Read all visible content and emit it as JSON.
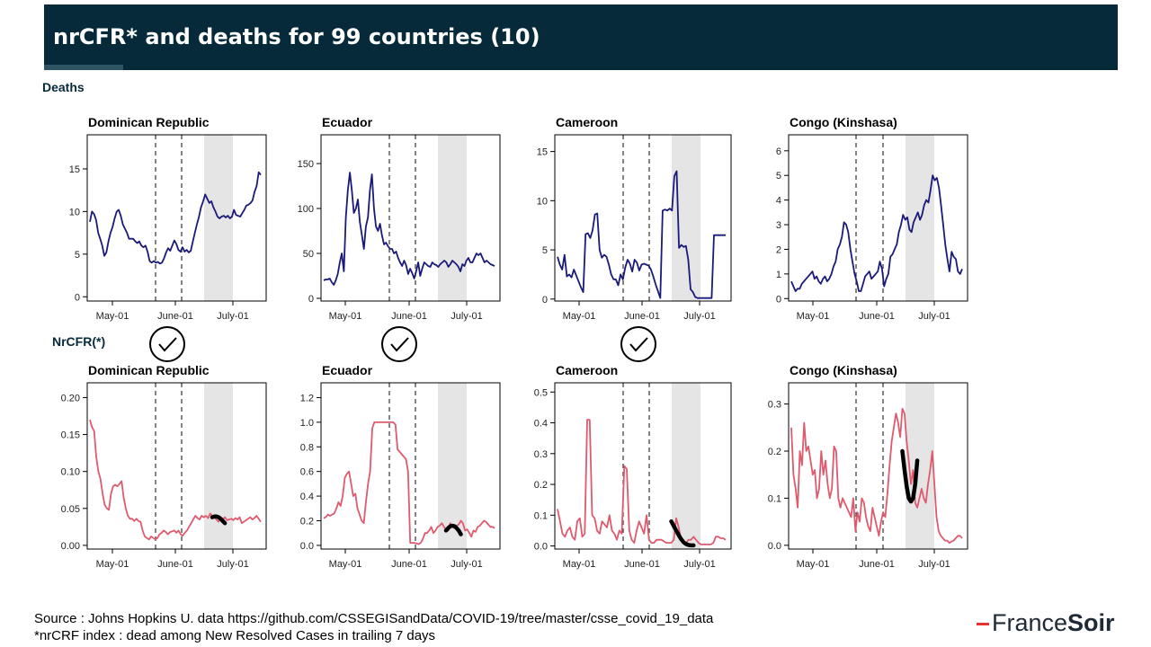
{
  "header": {
    "title": "nrCFR* and deaths for 99 countries (10)"
  },
  "sections": {
    "deaths_label": "Deaths",
    "nrcfr_label": "NrCFR(*)"
  },
  "footer": {
    "source": "Source : Johns Hopkins U. data https://github.com/CSSEGISandData/COVID-19/tree/master/csse_covid_19_data",
    "note": "*nrCRF index : dead among New Resolved  Cases in trailing 7 days"
  },
  "logo": {
    "part1": "France",
    "part2": "Soir"
  },
  "colors": {
    "deaths_line": "#1a1a7a",
    "nrcfr_line": "#e05a6e",
    "fit_line": "#000000",
    "shade": "#e5e5e5",
    "title_bg": "#062a3a"
  },
  "chart_data": [
    {
      "type": "line",
      "title": "Dominican Republic",
      "metric": "deaths",
      "x_ticks": [
        "May-01",
        "June-01",
        "July-01"
      ],
      "y_ticks": [
        0,
        5,
        10,
        15
      ],
      "ylim": [
        -0.5,
        19
      ],
      "checkmark": true,
      "values": [
        8.8,
        10,
        9.7,
        9,
        7.5,
        6.8,
        6,
        4.8,
        5.2,
        6.5,
        7.5,
        8.2,
        9.2,
        10,
        10.2,
        9.5,
        8.5,
        8,
        7.5,
        6.8,
        6.8,
        6.8,
        6.5,
        6.3,
        6.5,
        6,
        5.8,
        6,
        5.3,
        4.2,
        4,
        4.2,
        4,
        4.1,
        3.9,
        4,
        4.5,
        5.2,
        5.7,
        5.4,
        6,
        6.6,
        6.2,
        5.5,
        5.3,
        5.8,
        5.3,
        5.5,
        5.2,
        5.4,
        6.5,
        7.5,
        8.5,
        9.4,
        10.5,
        11.2,
        12,
        11.5,
        11,
        11.2,
        10.5,
        10,
        9.4,
        9.2,
        9.4,
        9.5,
        9.3,
        9.5,
        9.2,
        9.4,
        10.2,
        9.6,
        9.5,
        9.4,
        9.8,
        10.2,
        10.7,
        10.8,
        11,
        11.3,
        12.3,
        13,
        14.6,
        14.3
      ]
    },
    {
      "type": "line",
      "title": "Ecuador",
      "metric": "deaths",
      "x_ticks": [
        "May-01",
        "June-01",
        "July-01"
      ],
      "y_ticks": [
        0,
        50,
        100,
        150
      ],
      "ylim": [
        -3,
        182
      ],
      "checkmark": true,
      "values": [
        20,
        21,
        21,
        22,
        18,
        15,
        20,
        27,
        40,
        50,
        30,
        90,
        120,
        140,
        120,
        95,
        100,
        110,
        85,
        70,
        55,
        80,
        90,
        120,
        138,
        100,
        80,
        75,
        83,
        70,
        60,
        62,
        58,
        55,
        55,
        50,
        52,
        45,
        40,
        36,
        42,
        37,
        27,
        33,
        28,
        22,
        30,
        40,
        25,
        33,
        40,
        38,
        36,
        35,
        40,
        38,
        37,
        35,
        38,
        40,
        42,
        40,
        35,
        38,
        42,
        40,
        38,
        35,
        30,
        38,
        36,
        42,
        45,
        40,
        40,
        45,
        50,
        48,
        50,
        45,
        40,
        42,
        40,
        38,
        37,
        36
      ]
    },
    {
      "type": "line",
      "title": "Cameroon",
      "metric": "deaths",
      "x_ticks": [
        "May-01",
        "June-01",
        "July-01"
      ],
      "y_ticks": [
        0,
        5,
        10,
        15
      ],
      "ylim": [
        -0.2,
        16.7
      ],
      "checkmark": true,
      "values": [
        4.3,
        3.5,
        3,
        4.5,
        2.3,
        2.5,
        2.2,
        3,
        2.4,
        1.8,
        1.2,
        0.7,
        6.6,
        6.7,
        6.2,
        7,
        8.6,
        8.7,
        5,
        4.2,
        4.5,
        4.3,
        3.5,
        2.5,
        2,
        2,
        1.4,
        2.5,
        2,
        3.2,
        4,
        3.6,
        2.8,
        4,
        3.7,
        2.9,
        3.5,
        3.6,
        3.5,
        3.4,
        3,
        2.3,
        1.5,
        0.8,
        0.1,
        9,
        9.1,
        9,
        9.2,
        9,
        12.5,
        13,
        5.2,
        5.5,
        5.3,
        5.4,
        4,
        1,
        0.7,
        0.2,
        0.1,
        0.1,
        0.1,
        0.1,
        0.1,
        0.1,
        0.1,
        6.5,
        6.5,
        6.5,
        6.5,
        6.5,
        6.5
      ]
    },
    {
      "type": "line",
      "title": "Congo (Kinshasa)",
      "metric": "deaths",
      "x_ticks": [
        "May-01",
        "June-01",
        "July-01"
      ],
      "y_ticks": [
        0,
        1,
        2,
        3,
        4,
        5,
        6
      ],
      "ylim": [
        -0.1,
        6.65
      ],
      "checkmark": false,
      "values": [
        0.7,
        0.5,
        0.3,
        0.4,
        0.4,
        0.6,
        0.7,
        0.8,
        0.9,
        1,
        1.1,
        0.8,
        0.9,
        0.7,
        0.6,
        0.8,
        0.9,
        0.7,
        0.8,
        1,
        1.3,
        1.5,
        2,
        2.2,
        2.5,
        3.1,
        3,
        2.7,
        2,
        1.5,
        1,
        0.7,
        0.3,
        0.3,
        0.6,
        0.9,
        1,
        1.1,
        0.8,
        0.9,
        1,
        1.1,
        1.5,
        1.2,
        0.5,
        0.8,
        1,
        1.7,
        1.8,
        2,
        2.2,
        2.7,
        3,
        3.4,
        3.2,
        3.3,
        2.8,
        2.7,
        3.1,
        3.3,
        3.5,
        3.2,
        3.4,
        3.8,
        4,
        3.9,
        4.4,
        5,
        4.8,
        4.9,
        4.5,
        3.8,
        3,
        2.2,
        1.6,
        1.1,
        1.9,
        1.7,
        1.6,
        1.1,
        1,
        1.2
      ]
    },
    {
      "type": "line",
      "title": "Dominican Republic",
      "metric": "nrCFR",
      "x_ticks": [
        "May-01",
        "June-01",
        "July-01"
      ],
      "y_ticks": [
        0.0,
        0.05,
        0.1,
        0.15,
        0.2
      ],
      "ylim": [
        -0.005,
        0.22
      ],
      "values": [
        0.17,
        0.16,
        0.155,
        0.12,
        0.1,
        0.09,
        0.07,
        0.055,
        0.05,
        0.048,
        0.07,
        0.08,
        0.082,
        0.08,
        0.083,
        0.087,
        0.065,
        0.05,
        0.04,
        0.036,
        0.036,
        0.033,
        0.036,
        0.033,
        0.032,
        0.02,
        0.012,
        0.01,
        0.008,
        0.012,
        0.01,
        0.008,
        0.01,
        0.015,
        0.017,
        0.02,
        0.018,
        0.015,
        0.018,
        0.019,
        0.02,
        0.017,
        0.02,
        0.015,
        0.013,
        0.017,
        0.02,
        0.025,
        0.03,
        0.035,
        0.04,
        0.037,
        0.035,
        0.04,
        0.038,
        0.04,
        0.037,
        0.043,
        0.04,
        0.038,
        0.035,
        0.032,
        0.038,
        0.035,
        0.038,
        0.034,
        0.035,
        0.036,
        0.034,
        0.037,
        0.035,
        0.038,
        0.03,
        0.032,
        0.034,
        0.036,
        0.038,
        0.035,
        0.037,
        0.04,
        0.036,
        0.032
      ],
      "fit": {
        "start_index": 58,
        "values": [
          0.038,
          0.039,
          0.039,
          0.038,
          0.036,
          0.033,
          0.03
        ]
      }
    },
    {
      "type": "line",
      "title": "Ecuador",
      "metric": "nrCFR",
      "x_ticks": [
        "May-01",
        "June-01",
        "July-01"
      ],
      "y_ticks": [
        0.0,
        0.2,
        0.4,
        0.6,
        0.8,
        1.0,
        1.2
      ],
      "ylim": [
        -0.03,
        1.32
      ],
      "values": [
        0.22,
        0.23,
        0.25,
        0.24,
        0.25,
        0.26,
        0.3,
        0.35,
        0.32,
        0.4,
        0.55,
        0.58,
        0.6,
        0.5,
        0.4,
        0.42,
        0.3,
        0.25,
        0.2,
        0.18,
        0.35,
        0.5,
        0.6,
        0.95,
        1,
        1,
        1,
        1,
        1,
        1,
        1,
        1,
        1,
        1,
        0.98,
        0.78,
        0.76,
        0.74,
        0.72,
        0.7,
        0.6,
        0.02,
        0.02,
        0.02,
        0.015,
        0.01,
        0.02,
        0.05,
        0.1,
        0.1,
        0.12,
        0.15,
        0.1,
        0.12,
        0.15,
        0.16,
        0.18,
        0.15,
        0.13,
        0.12,
        0.18,
        0.15,
        0.14,
        0.16,
        0.17,
        0.2,
        0.18,
        0.12,
        0.13,
        0.1,
        0.07,
        0.12,
        0.11,
        0.15,
        0.16,
        0.18,
        0.2,
        0.19,
        0.17,
        0.15,
        0.15,
        0.14
      ],
      "fit": {
        "start_index": 58,
        "values": [
          0.12,
          0.14,
          0.155,
          0.16,
          0.155,
          0.14,
          0.12,
          0.09
        ]
      }
    },
    {
      "type": "line",
      "title": "Cameroon",
      "metric": "nrCFR",
      "x_ticks": [
        "May-01",
        "June-01",
        "July-01"
      ],
      "y_ticks": [
        0.0,
        0.1,
        0.2,
        0.3,
        0.4,
        0.5
      ],
      "ylim": [
        -0.01,
        0.53
      ],
      "values": [
        0.12,
        0.08,
        0.04,
        0.03,
        0.05,
        0.06,
        0.03,
        0.02,
        0.08,
        0.09,
        0.03,
        0.04,
        0.41,
        0.41,
        0.1,
        0.09,
        0.05,
        0.04,
        0.08,
        0.07,
        0.06,
        0.1,
        0.05,
        0.04,
        0.02,
        0.05,
        0.04,
        0.26,
        0.25,
        0.05,
        0.02,
        0.01,
        0.05,
        0.08,
        0.06,
        0.04,
        0.1,
        0.02,
        0.01,
        0.01,
        0.02,
        0.02,
        0.02,
        0.015,
        0.01,
        0.01,
        0.01,
        0.02,
        0.09,
        0.06,
        0.02,
        0.01,
        0.01,
        0.02,
        0.02,
        0.03,
        0.02,
        0.01,
        0.005,
        0.005,
        0.005,
        0.005,
        0.005,
        0.01,
        0.03,
        0.03,
        0.025,
        0.025,
        0.02
      ],
      "fit": {
        "start_index": 46,
        "values": [
          0.08,
          0.065,
          0.05,
          0.035,
          0.022,
          0.012,
          0.006,
          0.003,
          0.002,
          0.002
        ]
      }
    },
    {
      "type": "line",
      "title": "Congo (Kinshasa)",
      "metric": "nrCFR",
      "x_ticks": [
        "May-01",
        "June-01",
        "July-01"
      ],
      "y_ticks": [
        0.0,
        0.1,
        0.2,
        0.3
      ],
      "ylim": [
        -0.008,
        0.345
      ],
      "values": [
        0.25,
        0.15,
        0.12,
        0.08,
        0.2,
        0.17,
        0.26,
        0.2,
        0.21,
        0.18,
        0.15,
        0.16,
        0.1,
        0.12,
        0.2,
        0.15,
        0.18,
        0.13,
        0.1,
        0.12,
        0.21,
        0.2,
        0.1,
        0.08,
        0.1,
        0.09,
        0.08,
        0.07,
        0.06,
        0.1,
        0.03,
        0.07,
        0.05,
        0.1,
        0.09,
        0.06,
        0.04,
        0.03,
        0.08,
        0.06,
        0.04,
        0.02,
        0.05,
        0.07,
        0.06,
        0.11,
        0.17,
        0.22,
        0.25,
        0.28,
        0.26,
        0.23,
        0.29,
        0.28,
        0.22,
        0.18,
        0.13,
        0.16,
        0.09,
        0.08,
        0.1,
        0.12,
        0.1,
        0.09,
        0.13,
        0.16,
        0.2,
        0.13,
        0.06,
        0.03,
        0.02,
        0.015,
        0.01,
        0.01,
        0.005,
        0.008,
        0.01,
        0.015,
        0.02,
        0.02,
        0.015
      ],
      "fit": {
        "start_index": 52,
        "values": [
          0.2,
          0.16,
          0.125,
          0.1,
          0.093,
          0.1,
          0.13,
          0.18
        ]
      }
    }
  ]
}
